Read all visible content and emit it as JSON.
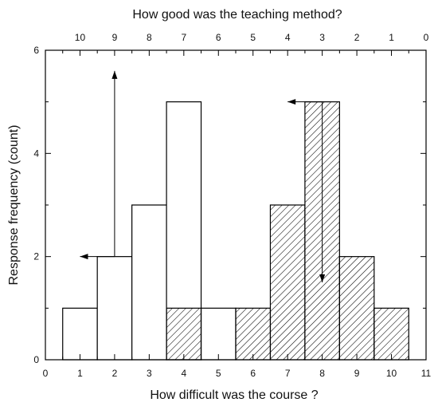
{
  "chart_data": {
    "type": "bar",
    "title": "",
    "xlabel": "How difficult was the course ?",
    "x2label": "How good was the teaching method?",
    "ylabel": "Response frequency (count)",
    "xlim": [
      0,
      11
    ],
    "x2lim": [
      11,
      0
    ],
    "ylim": [
      0,
      6
    ],
    "x_ticks": [
      "0",
      "1",
      "2",
      "3",
      "4",
      "5",
      "6",
      "7",
      "8",
      "9",
      "10",
      "11"
    ],
    "x2_ticks": [
      "10",
      "9",
      "8",
      "7",
      "6",
      "5",
      "4",
      "3",
      "2",
      "1",
      "0"
    ],
    "y_ticks": [
      "0",
      "2",
      "4",
      "6"
    ],
    "grid": false,
    "series": [
      {
        "fill": "white",
        "axis": "bottom",
        "x": [
          1,
          2,
          3,
          4,
          5
        ],
        "values": [
          1,
          2,
          3,
          5,
          1
        ]
      },
      {
        "fill": "hatched",
        "axis": "bottom",
        "x": [
          4,
          6,
          7,
          8,
          9,
          10
        ],
        "values": [
          1,
          1,
          3,
          5,
          2,
          1
        ]
      }
    ],
    "annotations": [
      {
        "type": "arrow",
        "from": [
          2,
          2
        ],
        "to": [
          2,
          5.6
        ]
      },
      {
        "type": "arrow",
        "from": [
          2,
          2
        ],
        "to": [
          1,
          2
        ]
      },
      {
        "type": "arrow",
        "from": [
          8,
          5
        ],
        "to": [
          7,
          5
        ]
      },
      {
        "type": "arrow",
        "from": [
          8,
          5
        ],
        "to": [
          8,
          1.5
        ]
      }
    ],
    "colors": {
      "bar_stroke": "#000000",
      "bar_fill": "#ffffff",
      "hatch": "#000000"
    }
  }
}
